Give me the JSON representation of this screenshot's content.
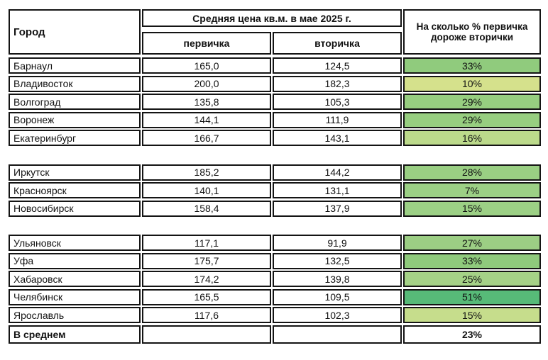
{
  "colors": {
    "border": "#141414",
    "text": "#121212",
    "background": "#ffffff",
    "green_dark": "#57BA78",
    "green_mid": "#97CE80",
    "green_light": "#D5E18C"
  },
  "table": {
    "header": {
      "city": "Город",
      "price_group": "Средняя цена кв.м. в мае 2025 г.",
      "primary": "первичка",
      "secondary": "вторичка",
      "pct": "На сколько % первичка дороже вторички"
    },
    "groups": [
      {
        "rows": [
          {
            "city": "Барнаул",
            "primary": "165,0",
            "secondary": "124,5",
            "pct": "33%",
            "color": "#90CB7D"
          },
          {
            "city": "Владивосток",
            "primary": "200,0",
            "secondary": "182,3",
            "pct": "10%",
            "color": "#D5E18C"
          },
          {
            "city": "Волгоград",
            "primary": "135,8",
            "secondary": "105,3",
            "pct": "29%",
            "color": "#97CE80"
          },
          {
            "city": "Воронеж",
            "primary": "144,1",
            "secondary": "111,9",
            "pct": "29%",
            "color": "#97CE80"
          },
          {
            "city": "Екатеринбург",
            "primary": "166,7",
            "secondary": "143,1",
            "pct": "16%",
            "color": "#BCDA8B"
          }
        ]
      },
      {
        "rows": [
          {
            "city": "Иркутск",
            "primary": "185,2",
            "secondary": "144,2",
            "pct": "28%",
            "color": "#9ACF83"
          },
          {
            "city": "Красноярск",
            "primary": "140,1",
            "secondary": "131,1",
            "pct": "7%",
            "color": "#9CD085"
          },
          {
            "city": "Новосибирск",
            "primary": "158,4",
            "secondary": "137,9",
            "pct": "15%",
            "color": "#9CD085"
          }
        ]
      },
      {
        "rows": [
          {
            "city": "Ульяновск",
            "primary": "117,1",
            "secondary": "91,9",
            "pct": "27%",
            "color": "#9CCE84"
          },
          {
            "city": "Уфа",
            "primary": "175,7",
            "secondary": "132,5",
            "pct": "33%",
            "color": "#8FCA7C"
          },
          {
            "city": "Хабаровск",
            "primary": "174,2",
            "secondary": "139,8",
            "pct": "25%",
            "color": "#A5D287"
          },
          {
            "city": "Челябинск",
            "primary": "165,5",
            "secondary": "109,5",
            "pct": "51%",
            "color": "#57BA78"
          },
          {
            "city": "Ярославль",
            "primary": "117,6",
            "secondary": "102,3",
            "pct": "15%",
            "color": "#C6DD8C"
          }
        ]
      }
    ],
    "footer": {
      "label": "В среднем",
      "primary": "",
      "secondary": "",
      "pct": "23%"
    }
  },
  "chart_data": {
    "type": "table",
    "title": "Средняя цена кв.м. в мае 2025 г.",
    "columns": [
      "Город",
      "первичка",
      "вторичка",
      "На сколько % первичка дороже вторички"
    ],
    "rows": [
      [
        "Барнаул",
        165.0,
        124.5,
        "33%"
      ],
      [
        "Владивосток",
        200.0,
        182.3,
        "10%"
      ],
      [
        "Волгоград",
        135.8,
        105.3,
        "29%"
      ],
      [
        "Воронеж",
        144.1,
        111.9,
        "29%"
      ],
      [
        "Екатеринбург",
        166.7,
        143.1,
        "16%"
      ],
      [
        "Иркутск",
        185.2,
        144.2,
        "28%"
      ],
      [
        "Красноярск",
        140.1,
        131.1,
        "7%"
      ],
      [
        "Новосибирск",
        158.4,
        137.9,
        "15%"
      ],
      [
        "Ульяновск",
        117.1,
        91.9,
        "27%"
      ],
      [
        "Уфа",
        175.7,
        132.5,
        "33%"
      ],
      [
        "Хабаровск",
        174.2,
        139.8,
        "25%"
      ],
      [
        "Челябинск",
        165.5,
        109.5,
        "51%"
      ],
      [
        "Ярославль",
        117.6,
        102.3,
        "15%"
      ],
      [
        "В среднем",
        null,
        null,
        "23%"
      ]
    ]
  }
}
